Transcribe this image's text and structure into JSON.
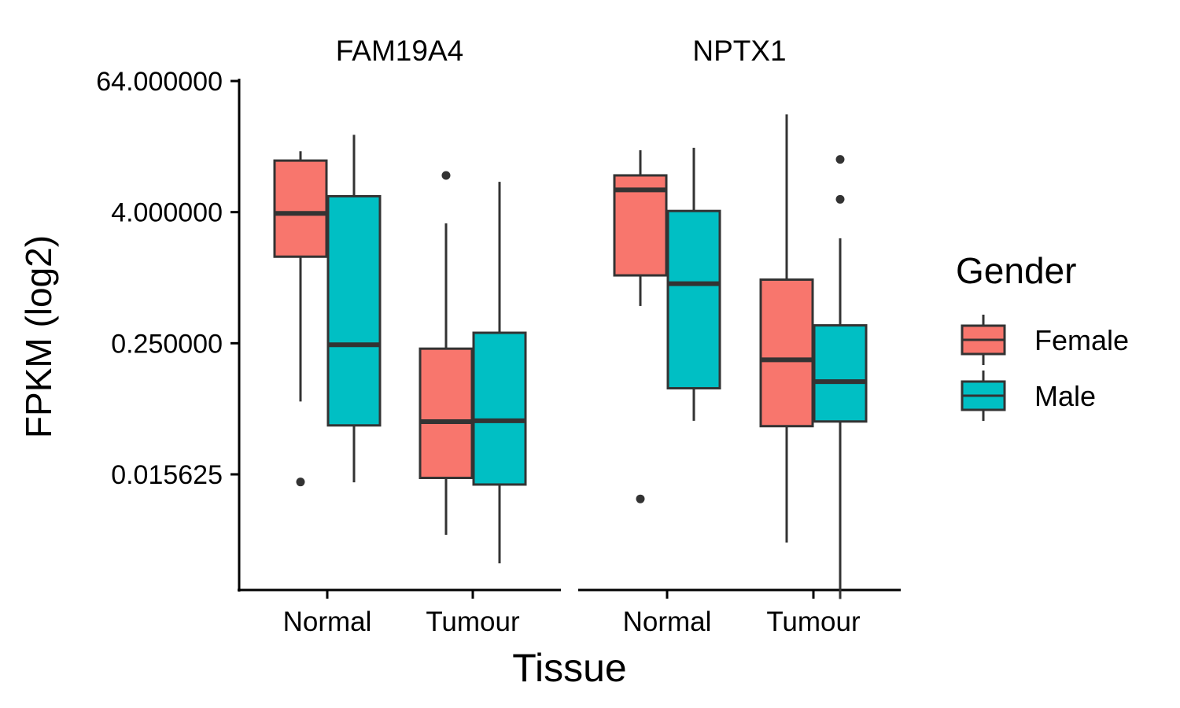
{
  "chart_data": {
    "type": "box",
    "ylabel": "FPKM (log2)",
    "xlabel": "Tissue",
    "y_scale": "log2",
    "ylim": [
      0.0014,
      64
    ],
    "y_ticks": [
      64,
      4,
      0.25,
      0.015625
    ],
    "y_tick_labels": [
      "64.000000",
      "4.000000",
      "0.250000",
      "0.015625"
    ],
    "categories": [
      "Normal",
      "Tumour"
    ],
    "legend": {
      "title": "Gender",
      "position": "right",
      "items": [
        {
          "name": "Female",
          "color": "#F8766D"
        },
        {
          "name": "Male",
          "color": "#00BFC4"
        }
      ]
    },
    "grid": false,
    "panels": [
      {
        "title": "FAM19A4",
        "boxes": [
          {
            "category": "Normal",
            "group": "Female",
            "min": 0.073,
            "q1": 1.56,
            "median": 3.9,
            "q3": 11.9,
            "max": 14.5,
            "outliers": [
              0.0133
            ]
          },
          {
            "category": "Normal",
            "group": "Male",
            "min": 0.0132,
            "q1": 0.044,
            "median": 0.242,
            "q3": 5.6,
            "max": 20.5,
            "outliers": []
          },
          {
            "category": "Tumour",
            "group": "Female",
            "min": 0.00435,
            "q1": 0.0145,
            "median": 0.0476,
            "q3": 0.223,
            "max": 3.16,
            "outliers": [
              8.7
            ]
          },
          {
            "category": "Tumour",
            "group": "Male",
            "min": 0.00238,
            "q1": 0.0126,
            "median": 0.0485,
            "q3": 0.312,
            "max": 7.6,
            "outliers": []
          }
        ]
      },
      {
        "title": "NPTX1",
        "boxes": [
          {
            "category": "Normal",
            "group": "Female",
            "min": 0.55,
            "q1": 1.05,
            "median": 6.4,
            "q3": 8.7,
            "max": 14.8,
            "outliers": [
              0.0093
            ]
          },
          {
            "category": "Normal",
            "group": "Male",
            "min": 0.0485,
            "q1": 0.0965,
            "median": 0.88,
            "q3": 4.1,
            "max": 15.6,
            "outliers": []
          },
          {
            "category": "Tumour",
            "group": "Female",
            "min": 0.0037,
            "q1": 0.0433,
            "median": 0.176,
            "q3": 0.96,
            "max": 31.6,
            "outliers": []
          },
          {
            "category": "Tumour",
            "group": "Male",
            "min": 0.00112,
            "q1": 0.0478,
            "median": 0.111,
            "q3": 0.365,
            "max": 2.3,
            "outliers": [
              12.2,
              5.25
            ]
          }
        ]
      }
    ]
  }
}
